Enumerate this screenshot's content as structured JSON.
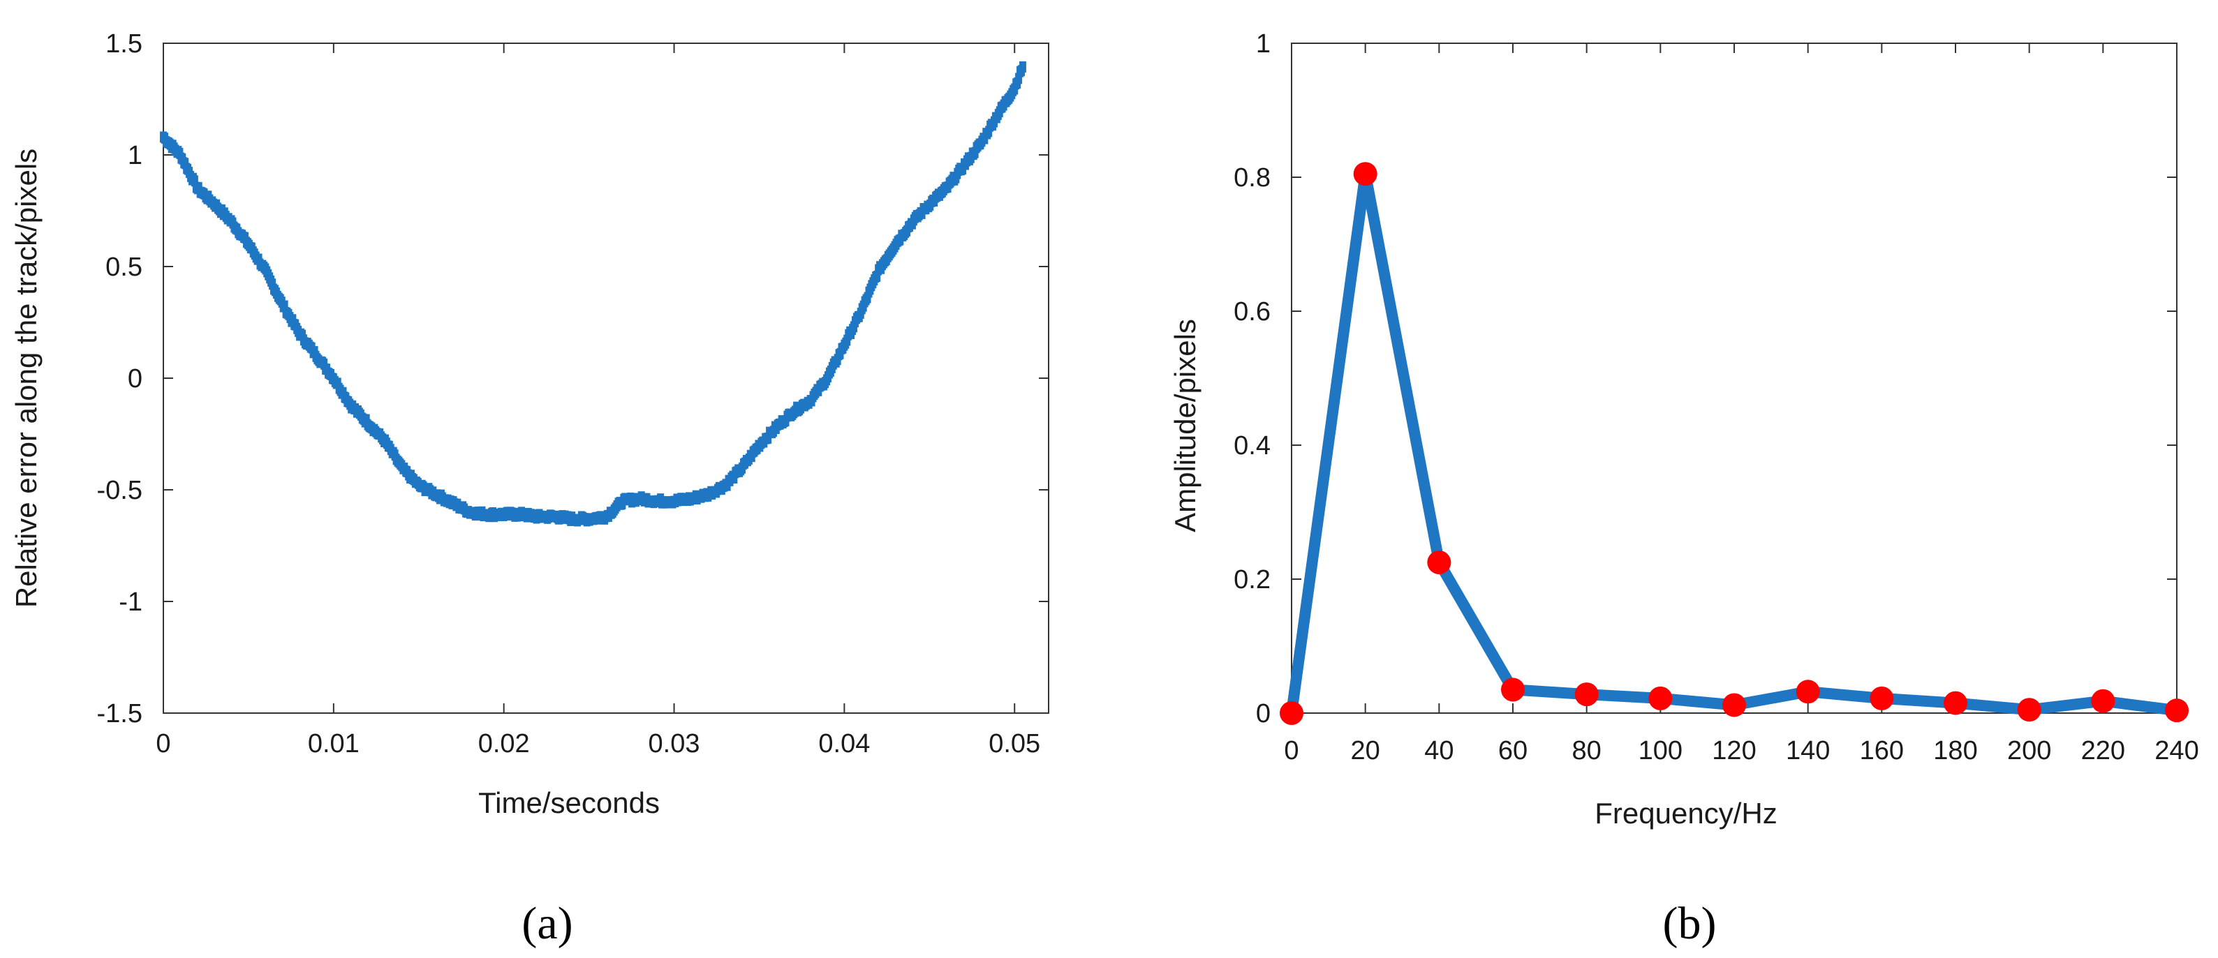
{
  "chart_data": [
    {
      "type": "scatter",
      "panel_label": "(a)",
      "xlabel": "Time/seconds",
      "ylabel": "Relative error along the track/pixels",
      "xlim": [
        0,
        0.052
      ],
      "ylim": [
        -1.5,
        1.5
      ],
      "xticks": [
        "0",
        "0.01",
        "0.02",
        "0.03",
        "0.04",
        "0.05"
      ],
      "yticks": [
        "1.5",
        "1",
        "0.5",
        "0",
        "-0.5",
        "-1",
        "-1.5"
      ],
      "color": "#1f77c4",
      "series": [
        {
          "x": [
            0.0,
            0.001,
            0.002,
            0.003,
            0.004,
            0.005,
            0.006,
            0.007,
            0.008,
            0.009,
            0.01,
            0.011,
            0.012,
            0.013,
            0.014,
            0.015,
            0.016,
            0.017,
            0.018,
            0.019,
            0.02,
            0.021,
            0.022,
            0.023,
            0.024,
            0.025,
            0.026,
            0.027,
            0.028,
            0.029,
            0.03,
            0.031,
            0.032,
            0.033,
            0.034,
            0.035,
            0.036,
            0.037,
            0.038,
            0.039,
            0.04,
            0.041,
            0.042,
            0.043,
            0.044,
            0.045,
            0.046,
            0.047,
            0.048,
            0.049,
            0.05,
            0.0505
          ],
          "values": [
            1.08,
            1.0,
            0.85,
            0.78,
            0.7,
            0.6,
            0.48,
            0.33,
            0.2,
            0.1,
            0.0,
            -0.12,
            -0.2,
            -0.28,
            -0.4,
            -0.48,
            -0.52,
            -0.56,
            -0.6,
            -0.61,
            -0.61,
            -0.61,
            -0.62,
            -0.62,
            -0.63,
            -0.63,
            -0.62,
            -0.55,
            -0.54,
            -0.55,
            -0.55,
            -0.54,
            -0.52,
            -0.48,
            -0.4,
            -0.3,
            -0.22,
            -0.15,
            -0.1,
            0.0,
            0.15,
            0.3,
            0.48,
            0.6,
            0.7,
            0.78,
            0.85,
            0.95,
            1.05,
            1.18,
            1.3,
            1.4
          ]
        }
      ]
    },
    {
      "type": "line",
      "panel_label": "(b)",
      "xlabel": "Frequency/Hz",
      "ylabel": "Amplitude/pixels",
      "xlim": [
        0,
        240
      ],
      "ylim": [
        0,
        1
      ],
      "xticks": [
        "0",
        "20",
        "40",
        "60",
        "80",
        "100",
        "120",
        "140",
        "160",
        "180",
        "200",
        "220",
        "240"
      ],
      "yticks": [
        "1",
        "0.8",
        "0.6",
        "0.4",
        "0.2",
        "0"
      ],
      "line_color": "#1f77c4",
      "marker_color": "#ff0000",
      "x": [
        0,
        20,
        40,
        60,
        80,
        100,
        120,
        140,
        160,
        180,
        200,
        220,
        240
      ],
      "series": [
        {
          "values": [
            0.0,
            0.805,
            0.225,
            0.035,
            0.028,
            0.022,
            0.012,
            0.032,
            0.022,
            0.015,
            0.005,
            0.018,
            0.004
          ]
        }
      ]
    }
  ]
}
